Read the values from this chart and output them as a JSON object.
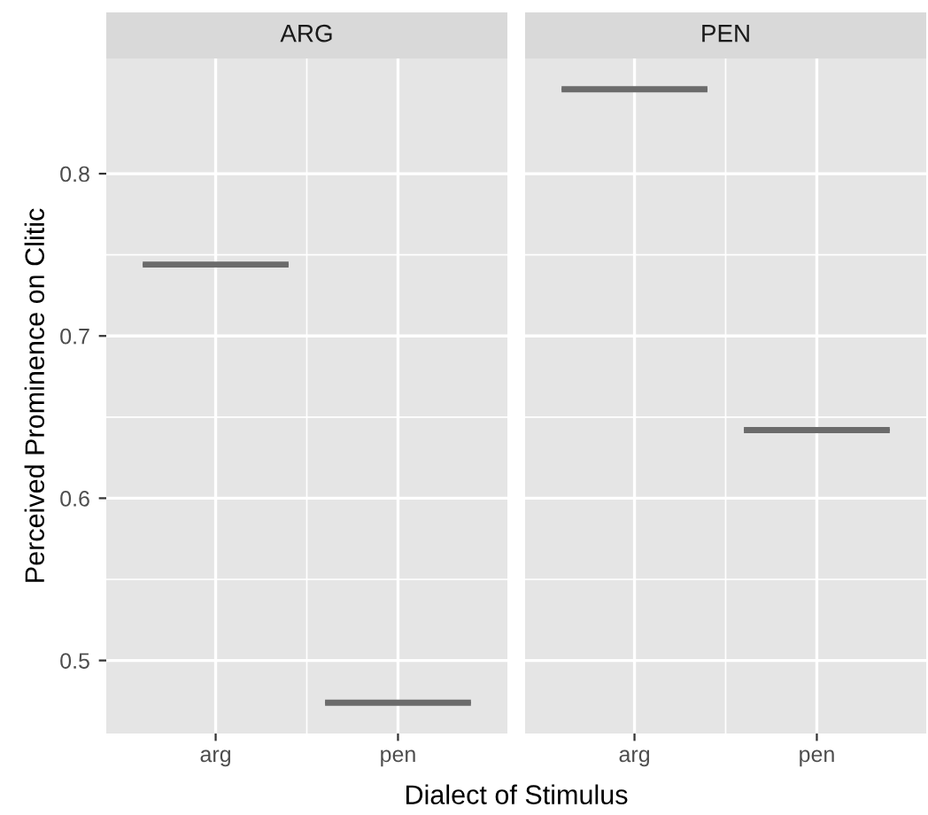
{
  "chart_data": [
    {
      "type": "box",
      "title": "ARG",
      "xlabel": "Dialect of Stimulus",
      "ylabel": "Perceived Prominence on Clitic",
      "categories": [
        "arg",
        "pen"
      ],
      "color": "#6b6b6b",
      "boxes": [
        {
          "low": 0.744,
          "q1": 0.744,
          "median": 0.744,
          "q3": 0.744,
          "high": 0.744
        },
        {
          "low": 0.474,
          "q1": 0.474,
          "median": 0.474,
          "q3": 0.474,
          "high": 0.474
        }
      ],
      "ylim": [
        0.455,
        0.871
      ],
      "yticks": [
        0.5,
        0.6,
        0.7,
        0.8
      ],
      "grid": true
    },
    {
      "type": "box",
      "title": "PEN",
      "categories": [
        "arg",
        "pen"
      ],
      "color": "#6b6b6b",
      "boxes": [
        {
          "low": 0.852,
          "q1": 0.852,
          "median": 0.852,
          "q3": 0.852,
          "high": 0.852
        },
        {
          "low": 0.642,
          "q1": 0.642,
          "median": 0.642,
          "q3": 0.642,
          "high": 0.642
        }
      ],
      "ylim": [
        0.455,
        0.871
      ],
      "yticks": [
        0.5,
        0.6,
        0.7,
        0.8
      ],
      "grid": true,
      "tick_labels": "x"
    }
  ]
}
